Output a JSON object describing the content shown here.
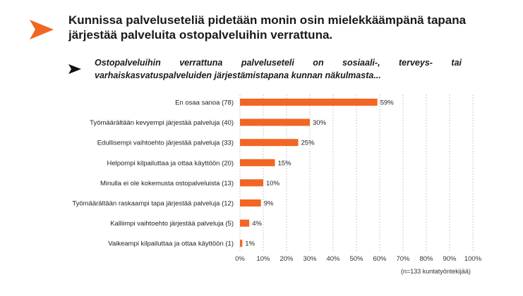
{
  "header": {
    "title": "Kunnissa palveluseteliä pidetään monin osin mielekkäämpänä tapana järjestää palveluita ostopalveluihin verrattuna.",
    "question": "Ostopalveluihin verrattuna palveluseteli on sosiaali-, terveys- tai varhaiskasvatuspalveluiden järjestämistapana kunnan näkulmasta..."
  },
  "icons": {
    "brand": "orange-arrow-icon",
    "pointer": "black-arrow-icon"
  },
  "colors": {
    "accent": "#F26522",
    "text": "#1a1a1a",
    "grid": "#c8c8c8"
  },
  "chart_data": {
    "type": "bar",
    "orientation": "horizontal",
    "categories": [
      "En osaa sanoa (78)",
      "Työmäärältään kevyempi järjestää palveluja (40)",
      "Edullisempi vaihtoehto järjestää palveluja (33)",
      "Helpompi kilpailuttaa ja ottaa käyttöön (20)",
      "Minulla ei ole kokemusta ostopalveluista (13)",
      "Työmäärältään raskaampi tapa järjestää palveluja (12)",
      "Kalliimpi vaihtoehto järjestää palveluja (5)",
      "Vaikeampi kilpailuttaa ja ottaa käyttöön (1)"
    ],
    "values": [
      59,
      30,
      25,
      15,
      10,
      9,
      4,
      1
    ],
    "value_labels": [
      "59%",
      "30%",
      "25%",
      "15%",
      "10%",
      "9%",
      "4%",
      "1%"
    ],
    "xlim": [
      0,
      100
    ],
    "xticks": [
      "0%",
      "10%",
      "20%",
      "30%",
      "40%",
      "50%",
      "60%",
      "70%",
      "80%",
      "90%",
      "100%"
    ],
    "grid": true,
    "note": "(n=133 kuntatyöntekijää)"
  }
}
